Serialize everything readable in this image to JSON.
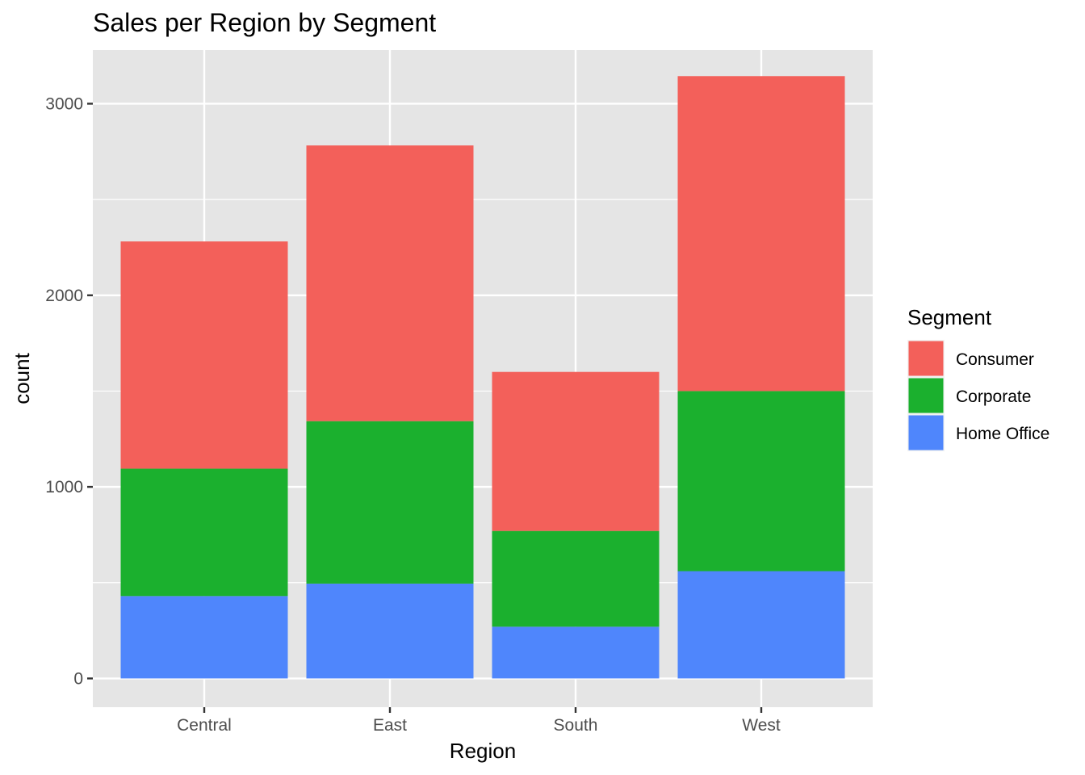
{
  "chart_data": {
    "type": "bar",
    "stacked": true,
    "title": "Sales per Region by Segment",
    "xlabel": "Region",
    "ylabel": "count",
    "categories": [
      "Central",
      "East",
      "South",
      "West"
    ],
    "series": [
      {
        "name": "Home Office",
        "values": [
          430,
          495,
          270,
          560
        ],
        "color": "#4f86fc"
      },
      {
        "name": "Corporate",
        "values": [
          665,
          848,
          500,
          940
        ],
        "color": "#1bb02e"
      },
      {
        "name": "Consumer",
        "values": [
          1186,
          1439,
          830,
          1644
        ],
        "color": "#f3605a"
      }
    ],
    "ylim": [
      -150,
      3280
    ],
    "yticks": [
      0,
      1000,
      2000,
      3000
    ],
    "yticks_minor": [
      500,
      1500,
      2500
    ],
    "grid": true,
    "legend": {
      "title": "Segment",
      "position": "right",
      "order": [
        "Consumer",
        "Corporate",
        "Home Office"
      ]
    },
    "panel_background": "#e5e5e5",
    "grid_color": "#ffffff",
    "tick_color": "#333333"
  }
}
